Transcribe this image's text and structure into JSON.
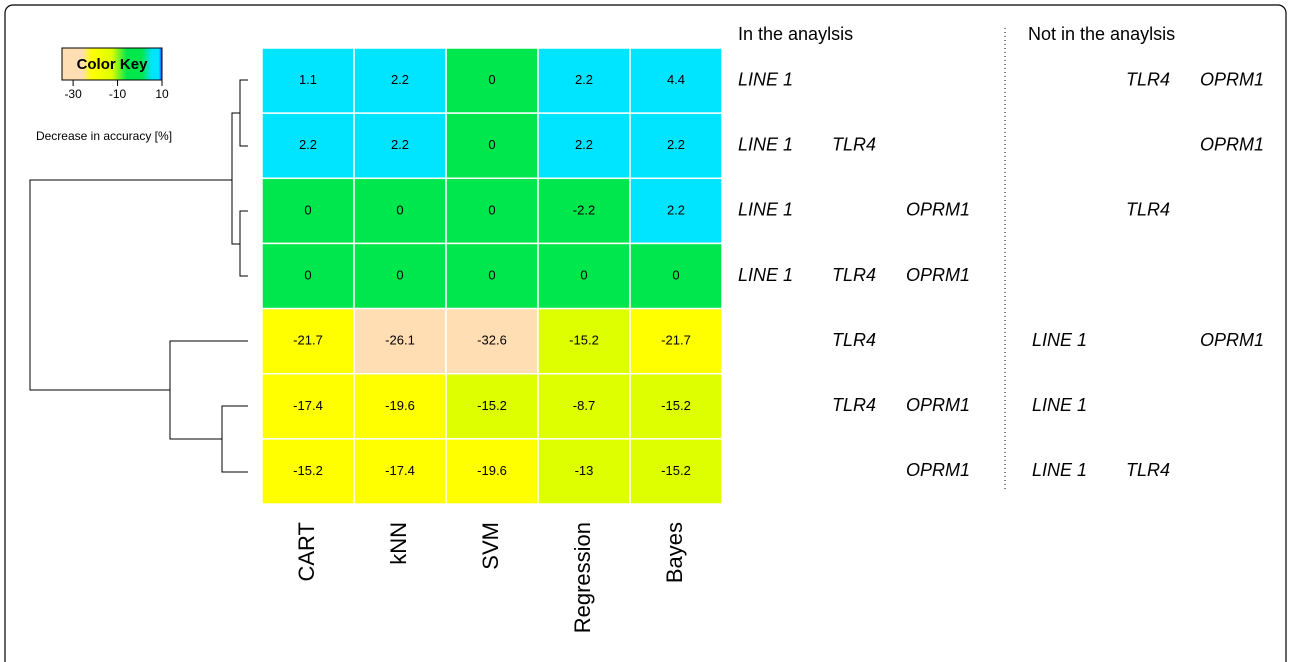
{
  "chart_data": {
    "type": "heatmap",
    "columns": [
      "CART",
      "kNN",
      "SVM",
      "Regression",
      "Bayes"
    ],
    "values": [
      [
        1.1,
        2.2,
        0,
        2.2,
        4.4
      ],
      [
        2.2,
        2.2,
        0,
        2.2,
        2.2
      ],
      [
        0,
        0,
        0,
        -2.2,
        2.2
      ],
      [
        0,
        0,
        0,
        0,
        0
      ],
      [
        -21.7,
        -26.1,
        -32.6,
        -15.2,
        -21.7
      ],
      [
        -17.4,
        -19.6,
        -15.2,
        -8.7,
        -15.2
      ],
      [
        -15.2,
        -17.4,
        -19.6,
        -13,
        -15.2
      ]
    ],
    "cell_colors": [
      [
        "#00e5ff",
        "#00e5ff",
        "#00e64d",
        "#00e5ff",
        "#00e5ff"
      ],
      [
        "#00e5ff",
        "#00e5ff",
        "#00e64d",
        "#00e5ff",
        "#00e5ff"
      ],
      [
        "#00e64d",
        "#00e64d",
        "#00e64d",
        "#00e64d",
        "#00e5ff"
      ],
      [
        "#00e64d",
        "#00e64d",
        "#00e64d",
        "#00e64d",
        "#00e64d"
      ],
      [
        "#ffff00",
        "#ffdeb3",
        "#ffdeb3",
        "#ddff00",
        "#ffff00"
      ],
      [
        "#ffff00",
        "#ffff00",
        "#ddff00",
        "#ddff00",
        "#ddff00"
      ],
      [
        "#ffff00",
        "#ffff00",
        "#ffff00",
        "#ddff00",
        "#ddff00"
      ]
    ],
    "key_title": "Color Key",
    "key_label": "Decrease in accuracy [%]",
    "key_lim": [
      -35,
      10
    ],
    "key_ticks": [
      -30,
      -10,
      10
    ],
    "in_title": "In the anaylsis",
    "out_title": "Not in the anaylsis",
    "in_analysis": [
      [
        "LINE 1",
        null,
        null
      ],
      [
        "LINE 1",
        "TLR4",
        null
      ],
      [
        "LINE 1",
        null,
        "OPRM1"
      ],
      [
        "LINE 1",
        "TLR4",
        "OPRM1"
      ],
      [
        null,
        "TLR4",
        null
      ],
      [
        null,
        "TLR4",
        "OPRM1"
      ],
      [
        null,
        null,
        "OPRM1"
      ]
    ],
    "not_in_analysis": [
      [
        null,
        "TLR4",
        "OPRM1"
      ],
      [
        null,
        null,
        "OPRM1"
      ],
      [
        null,
        "TLR4",
        null
      ],
      [
        null,
        null,
        null
      ],
      [
        "LINE 1",
        null,
        "OPRM1"
      ],
      [
        "LINE 1",
        null,
        null
      ],
      [
        "LINE 1",
        "TLR4",
        null
      ]
    ]
  }
}
